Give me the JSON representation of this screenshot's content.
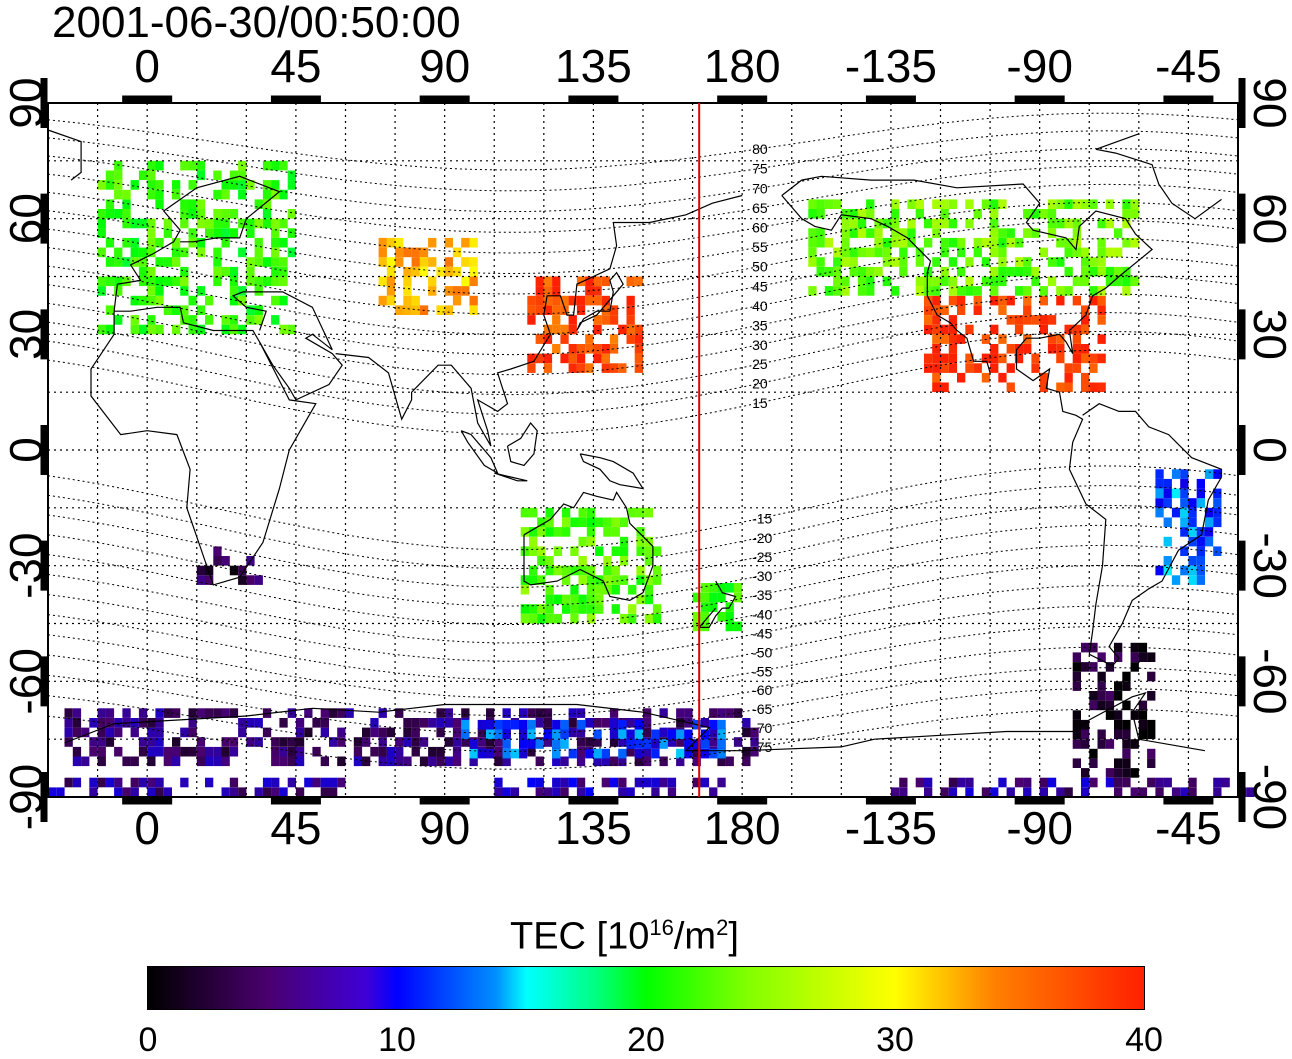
{
  "timestamp": "2001-06-30/00:50:00",
  "map": {
    "type": "global-tec-map",
    "projection": "equirectangular",
    "lon_range": [
      -30,
      330
    ],
    "lat_range": [
      -90,
      90
    ],
    "grid": true,
    "top_lon_labels": [
      "0",
      "45",
      "90",
      "135",
      "180",
      "-135",
      "-90",
      "-45"
    ],
    "bottom_lon_labels": [
      "0",
      "45",
      "90",
      "135",
      "180",
      "-135",
      "-90",
      "-45"
    ],
    "left_lat_labels": [
      "90",
      "60",
      "30",
      "0",
      "-30",
      "-60",
      "-90"
    ],
    "right_lat_labels": [
      "90",
      "60",
      "30",
      "0",
      "-30",
      "-60",
      "-90"
    ],
    "meridian_marker_lon": 167,
    "meridian_marker_color": "#e00000",
    "contour_labels": [
      "80",
      "75",
      "70",
      "65",
      "60",
      "55",
      "50",
      "45",
      "40",
      "35",
      "30",
      "25",
      "20",
      "15",
      "-15",
      "-20",
      "-25",
      "-30",
      "-35",
      "-40",
      "-45",
      "-50",
      "-55",
      "-60",
      "-65",
      "-70",
      "-75"
    ]
  },
  "colorbar": {
    "title_main": "TEC  [10",
    "title_sup1": "16",
    "title_mid": "/m",
    "title_sup2": "2",
    "title_end": "]",
    "min": 0,
    "max": 40,
    "tick_labels": [
      "0",
      "10",
      "20",
      "30",
      "40"
    ],
    "colors": [
      "#000000",
      "#4a006e",
      "#0000ff",
      "#00ffff",
      "#00ff00",
      "#ffff00",
      "#ff8000",
      "#ff2000"
    ]
  },
  "tec_regions": [
    {
      "name": "europe",
      "lon": [
        -15,
        45
      ],
      "lat": [
        30,
        75
      ],
      "tec": 22
    },
    {
      "name": "central-asia",
      "lon": [
        70,
        100
      ],
      "lat": [
        35,
        55
      ],
      "tec": 33
    },
    {
      "name": "east-asia",
      "lon": [
        115,
        150
      ],
      "lat": [
        20,
        45
      ],
      "tec": 38
    },
    {
      "name": "north-america-south",
      "lon": [
        -125,
        -70
      ],
      "lat": [
        15,
        40
      ],
      "tec": 39
    },
    {
      "name": "north-america-north",
      "lon": [
        -160,
        -60
      ],
      "lat": [
        40,
        65
      ],
      "tec": 24
    },
    {
      "name": "australia",
      "lon": [
        113,
        155
      ],
      "lat": [
        -45,
        -15
      ],
      "tec": 23
    },
    {
      "name": "new-zealand",
      "lon": [
        165,
        180
      ],
      "lat": [
        -47,
        -35
      ],
      "tec": 22
    },
    {
      "name": "south-africa",
      "lon": [
        15,
        35
      ],
      "lat": [
        -35,
        -25
      ],
      "tec": 3
    },
    {
      "name": "south-america-east",
      "lon": [
        -55,
        -35
      ],
      "lat": [
        -35,
        -5
      ],
      "tec": 12
    },
    {
      "name": "antarctica",
      "lon": [
        -25,
        185
      ],
      "lat": [
        -82,
        -68
      ],
      "tec": 5
    },
    {
      "name": "antarctic-ring",
      "lon": [
        95,
        175
      ],
      "lat": [
        -80,
        -70
      ],
      "tec": 11
    },
    {
      "name": "south-america-tip",
      "lon": [
        -80,
        -55
      ],
      "lat": [
        -85,
        -50
      ],
      "tec": 2
    },
    {
      "name": "southern-band-west",
      "lon": [
        -30,
        60
      ],
      "lat": [
        -90,
        -86
      ],
      "tec": 6
    },
    {
      "name": "southern-band-mid",
      "lon": [
        105,
        175
      ],
      "lat": [
        -90,
        -86
      ],
      "tec": 7
    },
    {
      "name": "southern-band-east",
      "lon": [
        -135,
        -25
      ],
      "lat": [
        -90,
        -86
      ],
      "tec": 6
    }
  ]
}
